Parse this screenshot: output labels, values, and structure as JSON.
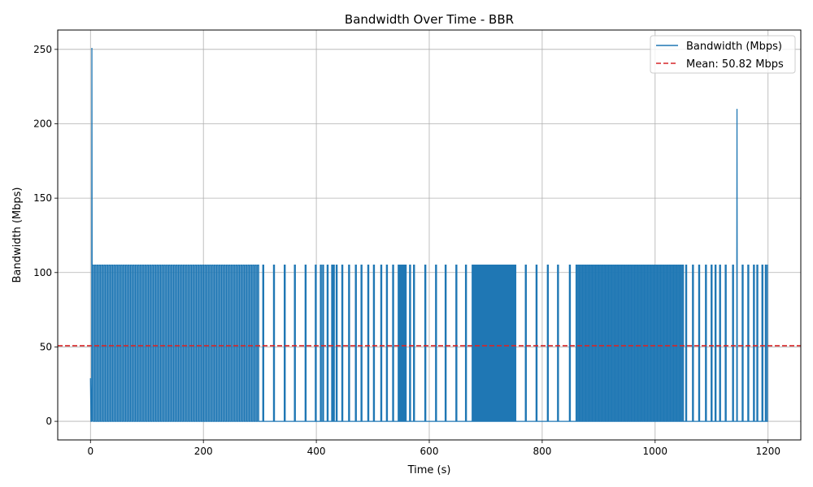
{
  "chart_data": {
    "type": "line",
    "title": "Bandwidth Over Time - BBR",
    "xlabel": "Time (s)",
    "ylabel": "Bandwidth (Mbps)",
    "xlim": [
      -58,
      1258
    ],
    "ylim": [
      -12.5,
      263
    ],
    "xticks": [
      0,
      200,
      400,
      600,
      800,
      1000,
      1200
    ],
    "yticks": [
      0,
      50,
      100,
      150,
      200,
      250
    ],
    "grid": true,
    "legend_position": "top-right",
    "series": [
      {
        "name": "Bandwidth (Mbps)",
        "color": "#1f77b4",
        "pattern": "square-wave bursts alternating between 0 and 105 Mbps",
        "high_value": 105,
        "low_value": 0,
        "start_value": 29,
        "spikes": [
          {
            "x": 2.5,
            "y": 251
          },
          {
            "x": 1145,
            "y": 210
          }
        ],
        "dense_regions": [
          {
            "x_start": 3,
            "x_end": 300,
            "count": 70
          },
          {
            "x_start": 545,
            "x_end": 560,
            "count": 8
          },
          {
            "x_start": 676,
            "x_end": 755,
            "count": 22
          },
          {
            "x_start": 860,
            "x_end": 1052,
            "count": 50
          }
        ],
        "sparse_pulses": [
          306,
          325,
          344,
          362,
          381,
          399,
          408,
          412,
          420,
          428,
          431,
          436,
          446,
          458,
          470,
          480,
          492,
          502,
          515,
          525,
          536,
          566,
          573,
          593,
          612,
          629,
          648,
          665,
          771,
          790,
          810,
          828,
          849,
          1055,
          1067,
          1078,
          1090,
          1100,
          1107,
          1115,
          1125,
          1138,
          1155,
          1165,
          1175,
          1181,
          1190,
          1196
        ],
        "x_end": 1200,
        "end_value": 105
      },
      {
        "name": "Mean: 50.82 Mbps",
        "color": "#d62728",
        "style": "dashed",
        "value": 50.82
      }
    ]
  }
}
